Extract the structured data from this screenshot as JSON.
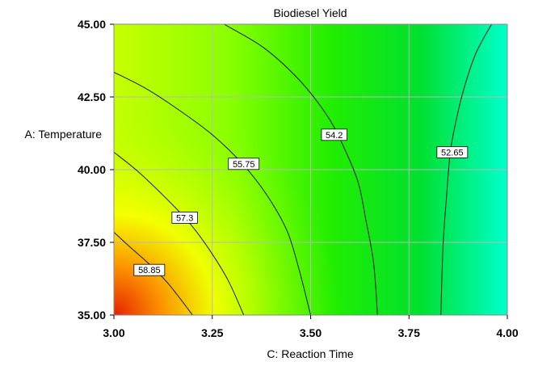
{
  "chart_data": {
    "type": "contour",
    "title": "Biodiesel Yield",
    "xlabel": "C: Reaction Time",
    "ylabel": "A: Temperature",
    "xlim": [
      3.0,
      4.0
    ],
    "ylim": [
      35.0,
      45.0
    ],
    "x_ticks": [
      "3.00",
      "3.25",
      "3.50",
      "3.75",
      "4.00"
    ],
    "y_ticks": [
      "35.00",
      "37.50",
      "40.00",
      "42.50",
      "45.00"
    ],
    "x_tick_values": [
      3.0,
      3.25,
      3.5,
      3.75,
      4.0
    ],
    "y_tick_values": [
      35.0,
      37.5,
      40.0,
      42.5,
      45.0
    ],
    "grid": true,
    "contours": [
      {
        "level": "58.85",
        "points": [
          [
            3.0,
            37.85
          ],
          [
            3.04,
            37.35
          ],
          [
            3.09,
            36.75
          ],
          [
            3.14,
            36.05
          ],
          [
            3.2,
            35.0
          ]
        ],
        "label_at": [
          3.09,
          36.55
        ]
      },
      {
        "level": "57.3",
        "points": [
          [
            3.0,
            40.6
          ],
          [
            3.06,
            39.95
          ],
          [
            3.13,
            39.05
          ],
          [
            3.19,
            38.2
          ],
          [
            3.24,
            37.3
          ],
          [
            3.29,
            36.2
          ],
          [
            3.33,
            35.0
          ]
        ],
        "label_at": [
          3.18,
          38.35
        ]
      },
      {
        "level": "55.75",
        "points": [
          [
            3.0,
            43.35
          ],
          [
            3.08,
            42.8
          ],
          [
            3.16,
            42.1
          ],
          [
            3.25,
            41.2
          ],
          [
            3.33,
            40.15
          ],
          [
            3.39,
            39.1
          ],
          [
            3.44,
            37.9
          ],
          [
            3.47,
            36.6
          ],
          [
            3.5,
            35.0
          ]
        ],
        "label_at": [
          3.33,
          40.2
        ]
      },
      {
        "level": "54.2",
        "points": [
          [
            3.28,
            45.0
          ],
          [
            3.38,
            44.2
          ],
          [
            3.47,
            43.1
          ],
          [
            3.54,
            41.9
          ],
          [
            3.58,
            40.9
          ],
          [
            3.62,
            39.6
          ],
          [
            3.64,
            38.3
          ],
          [
            3.66,
            36.8
          ],
          [
            3.67,
            35.0
          ]
        ],
        "label_at": [
          3.56,
          41.2
        ]
      },
      {
        "level": "52.65",
        "points": [
          [
            3.96,
            45.0
          ],
          [
            3.92,
            44.0
          ],
          [
            3.89,
            42.8
          ],
          [
            3.87,
            41.7
          ],
          [
            3.855,
            40.6
          ],
          [
            3.845,
            39.0
          ],
          [
            3.837,
            37.5
          ],
          [
            3.833,
            36.0
          ],
          [
            3.831,
            35.0
          ]
        ],
        "label_at": [
          3.86,
          40.6
        ]
      }
    ]
  }
}
